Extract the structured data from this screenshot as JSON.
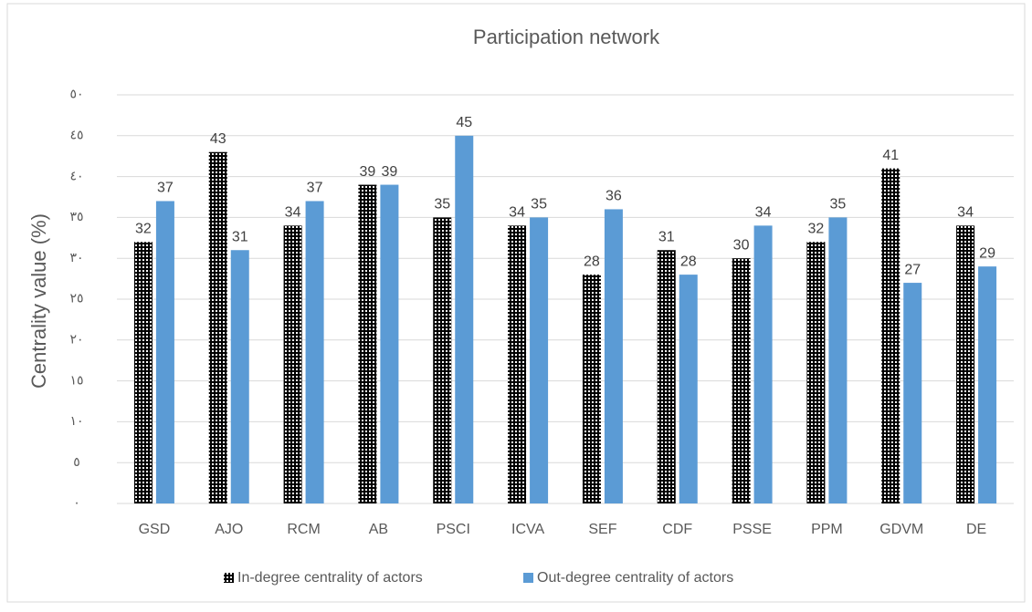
{
  "chart_data": {
    "type": "bar",
    "title": "Participation network",
    "y_label": "Centrality value (%)",
    "categories": [
      "GSD",
      "AJO",
      "RCM",
      "AB",
      "PSCI",
      "ICVA",
      "SEF",
      "CDF",
      "PSSE",
      "PPM",
      "GDVM",
      "DE"
    ],
    "series": [
      {
        "name": "In-degree centrality of actors",
        "color": "#000000",
        "values": [
          32,
          43,
          34,
          39,
          35,
          34,
          28,
          31,
          30,
          32,
          41,
          34
        ]
      },
      {
        "name": "Out-degree centrality of actors",
        "color": "#5b9bd5",
        "values": [
          37,
          31,
          37,
          39,
          45,
          35,
          36,
          28,
          34,
          35,
          27,
          29
        ]
      }
    ],
    "ylim": [
      0,
      50
    ],
    "yticks": [
      {
        "value": 0,
        "label": "٠"
      },
      {
        "value": 5,
        "label": "٥"
      },
      {
        "value": 10,
        "label": "١٠"
      },
      {
        "value": 15,
        "label": "١٥"
      },
      {
        "value": 20,
        "label": "٢٠"
      },
      {
        "value": 25,
        "label": "٢٥"
      },
      {
        "value": 30,
        "label": "٣٠"
      },
      {
        "value": 35,
        "label": "٣٥"
      },
      {
        "value": 40,
        "label": "٤٠"
      },
      {
        "value": 45,
        "label": "٤٥"
      },
      {
        "value": 50,
        "label": "٥٠"
      }
    ],
    "grid": true,
    "legend": "bottom"
  }
}
